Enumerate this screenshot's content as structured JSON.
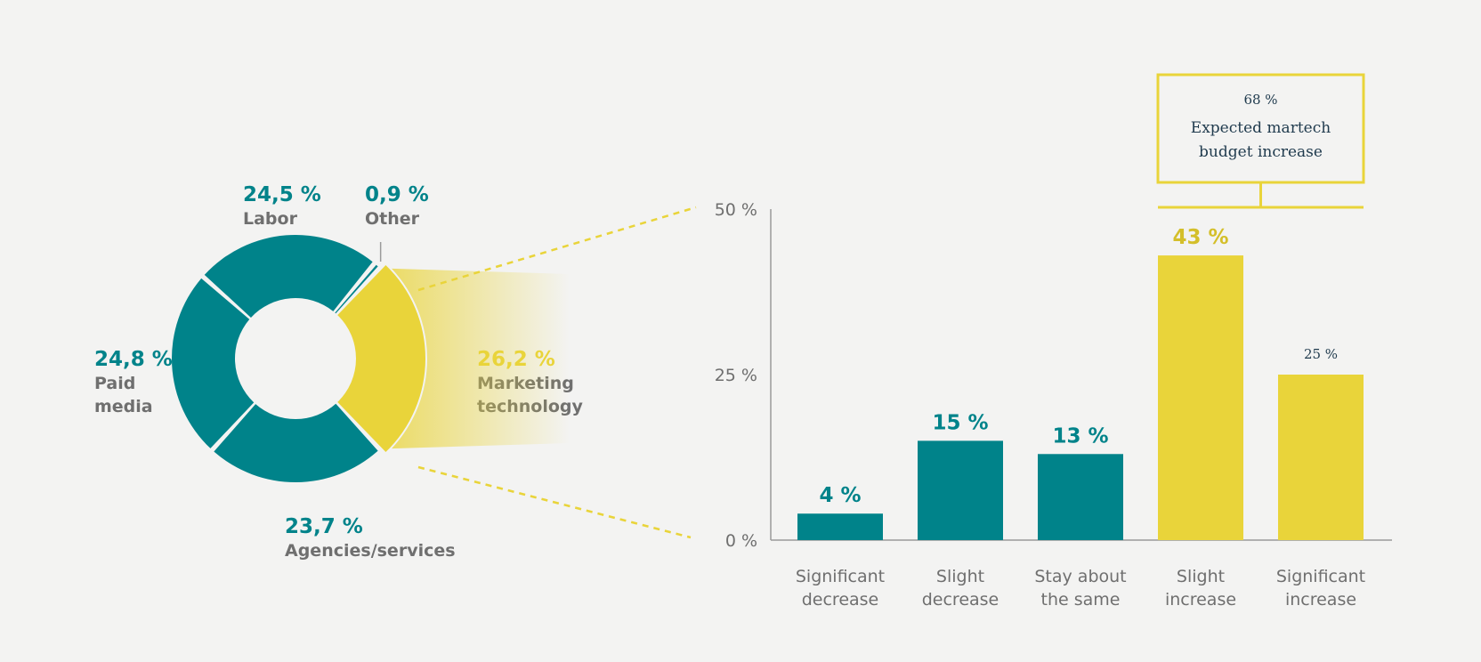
{
  "colors": {
    "teal": "#00838a",
    "yellow": "#e9d43a",
    "gray_text": "#6f6f6f",
    "background": "#f3f3f2"
  },
  "chart_data": [
    {
      "type": "pie",
      "variant": "donut",
      "slices": [
        {
          "label": "Marketing technology",
          "value": 26.2,
          "value_label": "26,2 %",
          "color": "#e9d43a",
          "highlight": true
        },
        {
          "label": "Agencies/services",
          "value": 23.7,
          "value_label": "23,7 %",
          "color": "#00838a"
        },
        {
          "label": "Paid media",
          "value": 24.8,
          "value_label": "24,8 %",
          "color": "#00838a"
        },
        {
          "label": "Labor",
          "value": 24.5,
          "value_label": "24,5 %",
          "color": "#00838a"
        },
        {
          "label": "Other",
          "value": 0.9,
          "value_label": "0,9 %",
          "color": "#00838a"
        }
      ]
    },
    {
      "type": "bar",
      "categories": [
        [
          "Significant",
          "decrease"
        ],
        [
          "Slight",
          "decrease"
        ],
        [
          "Stay about",
          "the same"
        ],
        [
          "Slight",
          "increase"
        ],
        [
          "Significant",
          "increase"
        ]
      ],
      "values": [
        4,
        15,
        13,
        43,
        25
      ],
      "value_labels": [
        "4 %",
        "15 %",
        "13 %",
        "43 %",
        "25 %"
      ],
      "bar_colors": [
        "#00838a",
        "#00838a",
        "#00838a",
        "#e9d43a",
        "#e9d43a"
      ],
      "ylim": [
        0,
        50
      ],
      "yticks": [
        {
          "value": 0,
          "label": "0 %"
        },
        {
          "value": 25,
          "label": "25 %"
        },
        {
          "value": 50,
          "label": "50 %"
        }
      ],
      "callout": {
        "value_label": "68 %",
        "text": [
          "Expected martech",
          "budget increase"
        ],
        "covers_categories": [
          3,
          4
        ]
      },
      "grid": false
    }
  ]
}
